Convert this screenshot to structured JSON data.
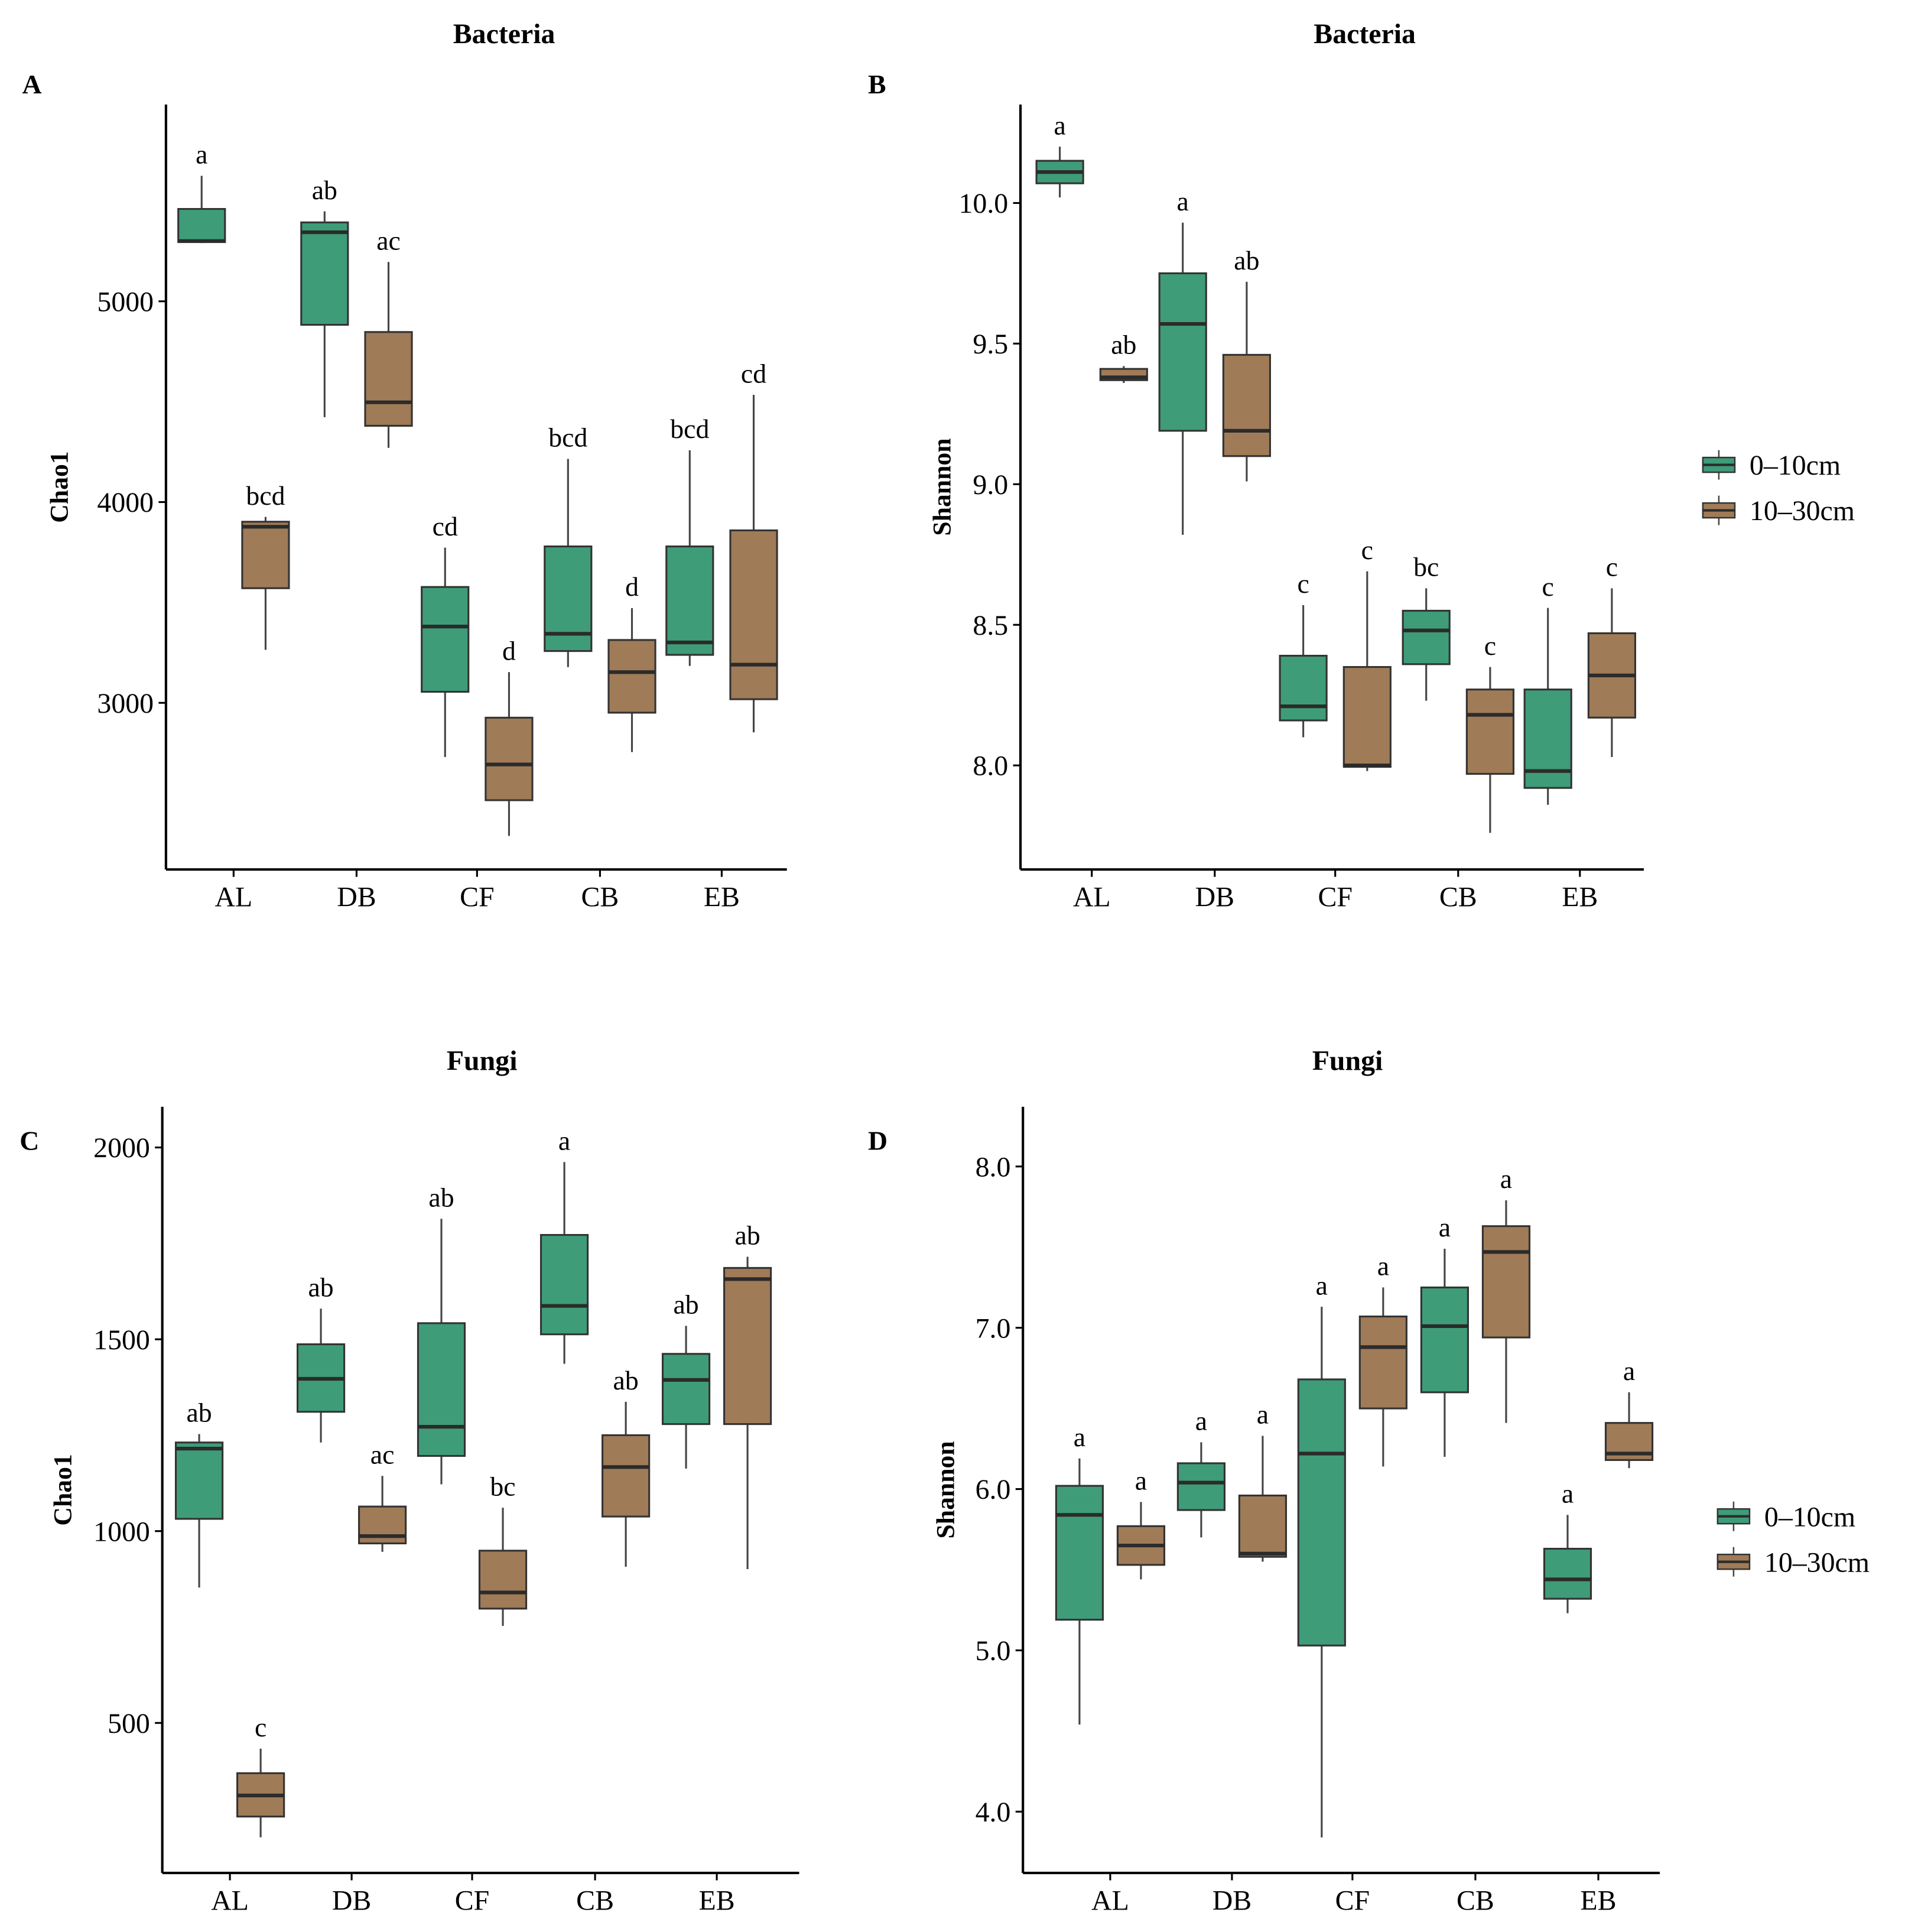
{
  "colors": {
    "0-10cm": "#3f9c79",
    "10-30cm": "#a07b57",
    "median": "#2b2b2b"
  },
  "legend": [
    "0–10cm",
    "10–30cm"
  ],
  "chart_data": [
    {
      "panel": "A",
      "type": "box",
      "title": "Bacteria",
      "ylabel": "Chao1",
      "xlabel": "",
      "categories": [
        "AL",
        "DB",
        "CF",
        "CB",
        "EB"
      ],
      "ylim": [
        2170,
        5980
      ],
      "yticks": [
        3000,
        4000,
        5000
      ],
      "ytick_labels": [
        "3000",
        "4000",
        "5000"
      ],
      "series": [
        {
          "name": "0–10cm",
          "boxes": [
            [
              5290,
              5295,
              5300,
              5460,
              5625
            ],
            [
              4423,
              4883,
              5344,
              5393,
              5448
            ],
            [
              2730,
              3055,
              3380,
              3577,
              3773
            ],
            [
              3178,
              3258,
              3344,
              3779,
              4215
            ],
            [
              3184,
              3239,
              3301,
              3779,
              4258
            ]
          ],
          "letters": [
            "a",
            "ab",
            "cd",
            "bcd",
            "bcd"
          ]
        },
        {
          "name": "10–30cm",
          "boxes": [
            [
              3264,
              3571,
              3877,
              3902,
              3926
            ],
            [
              4270,
              4380,
              4497,
              4847,
              5196
            ],
            [
              2337,
              2515,
              2693,
              2926,
              3153
            ],
            [
              2755,
              2951,
              3153,
              3313,
              3472
            ],
            [
              2853,
              3018,
              3190,
              3859,
              4534
            ]
          ],
          "letters": [
            "bcd",
            "ac",
            "d",
            "d",
            "cd"
          ]
        }
      ]
    },
    {
      "panel": "B",
      "type": "box",
      "title": "Bacteria",
      "ylabel": "Shannon",
      "xlabel": "",
      "categories": [
        "AL",
        "DB",
        "CF",
        "CB",
        "EB"
      ],
      "ylim": [
        7.63,
        10.35
      ],
      "yticks": [
        8.0,
        8.5,
        9.0,
        9.5,
        10.0
      ],
      "ytick_labels": [
        "8.0",
        "8.5",
        "9.0",
        "9.5",
        "10.0"
      ],
      "legend_position": "right",
      "series": [
        {
          "name": "0–10cm",
          "boxes": [
            [
              10.02,
              10.07,
              10.11,
              10.15,
              10.2
            ],
            [
              8.82,
              9.19,
              9.57,
              9.75,
              9.93
            ],
            [
              8.1,
              8.16,
              8.21,
              8.39,
              8.57
            ],
            [
              8.23,
              8.36,
              8.48,
              8.55,
              8.63
            ],
            [
              7.86,
              7.92,
              7.98,
              8.27,
              8.56
            ]
          ],
          "letters": [
            "a",
            "a",
            "c",
            "bc",
            "c"
          ]
        },
        {
          "name": "10–30cm",
          "boxes": [
            [
              9.36,
              9.37,
              9.38,
              9.41,
              9.42
            ],
            [
              9.01,
              9.1,
              9.19,
              9.46,
              9.72
            ],
            [
              7.98,
              7.995,
              8.0,
              8.35,
              8.69
            ],
            [
              7.76,
              7.97,
              8.18,
              8.27,
              8.35
            ],
            [
              8.03,
              8.17,
              8.32,
              8.47,
              8.63
            ]
          ],
          "letters": [
            "ab",
            "ab",
            "c",
            "c",
            "c"
          ]
        }
      ]
    },
    {
      "panel": "C",
      "type": "box",
      "title": "Fungi",
      "ylabel": "Chao1",
      "xlabel": "",
      "categories": [
        "AL",
        "DB",
        "CF",
        "CB",
        "EB"
      ],
      "ylim": [
        109,
        2106
      ],
      "yticks": [
        500,
        1000,
        1500,
        2000
      ],
      "ytick_labels": [
        "500",
        "1000",
        "1500",
        "2000"
      ],
      "series": [
        {
          "name": "0–10cm",
          "boxes": [
            [
              853,
              1032,
              1215,
              1231,
              1253
            ],
            [
              1231,
              1311,
              1397,
              1487,
              1580
            ],
            [
              1122,
              1196,
              1272,
              1542,
              1814
            ],
            [
              1436,
              1513,
              1587,
              1772,
              1962
            ],
            [
              1163,
              1279,
              1394,
              1462,
              1535
            ]
          ],
          "letters": [
            "ab",
            "ab",
            "ab",
            "a",
            "ab"
          ]
        },
        {
          "name": "10–30cm",
          "boxes": [
            [
              202,
              256,
              311,
              369,
              433
            ],
            [
              946,
              968,
              987,
              1064,
              1144
            ],
            [
              753,
              798,
              840,
              949,
              1061
            ],
            [
              907,
              1038,
              1167,
              1250,
              1337
            ],
            [
              901,
              1279,
              1657,
              1686,
              1715
            ]
          ],
          "letters": [
            "c",
            "ac",
            "bc",
            "ab",
            "ab"
          ]
        }
      ]
    },
    {
      "panel": "D",
      "type": "box",
      "title": "Fungi",
      "ylabel": "Shannon",
      "xlabel": "",
      "categories": [
        "AL",
        "DB",
        "CF",
        "CB",
        "EB"
      ],
      "ylim": [
        3.62,
        8.37
      ],
      "yticks": [
        4.0,
        5.0,
        6.0,
        7.0,
        8.0
      ],
      "ytick_labels": [
        "4.0",
        "5.0",
        "6.0",
        "7.0",
        "8.0"
      ],
      "legend_position": "right",
      "series": [
        {
          "name": "0–10cm",
          "boxes": [
            [
              4.54,
              5.19,
              5.84,
              6.02,
              6.19
            ],
            [
              5.7,
              5.87,
              6.04,
              6.16,
              6.29
            ],
            [
              3.84,
              5.03,
              6.22,
              6.68,
              7.13
            ],
            [
              6.2,
              6.6,
              7.01,
              7.25,
              7.49
            ],
            [
              5.23,
              5.32,
              5.44,
              5.63,
              5.84
            ]
          ],
          "letters": [
            "a",
            "a",
            "a",
            "a",
            "a"
          ]
        },
        {
          "name": "10–30cm",
          "boxes": [
            [
              5.44,
              5.53,
              5.65,
              5.77,
              5.92
            ],
            [
              5.55,
              5.58,
              5.6,
              5.96,
              6.33
            ],
            [
              6.14,
              6.5,
              6.88,
              7.07,
              7.25
            ],
            [
              6.41,
              6.94,
              7.47,
              7.63,
              7.79
            ],
            [
              6.13,
              6.18,
              6.22,
              6.41,
              6.6
            ]
          ],
          "letters": [
            "a",
            "a",
            "a",
            "a",
            "a"
          ]
        }
      ]
    }
  ]
}
